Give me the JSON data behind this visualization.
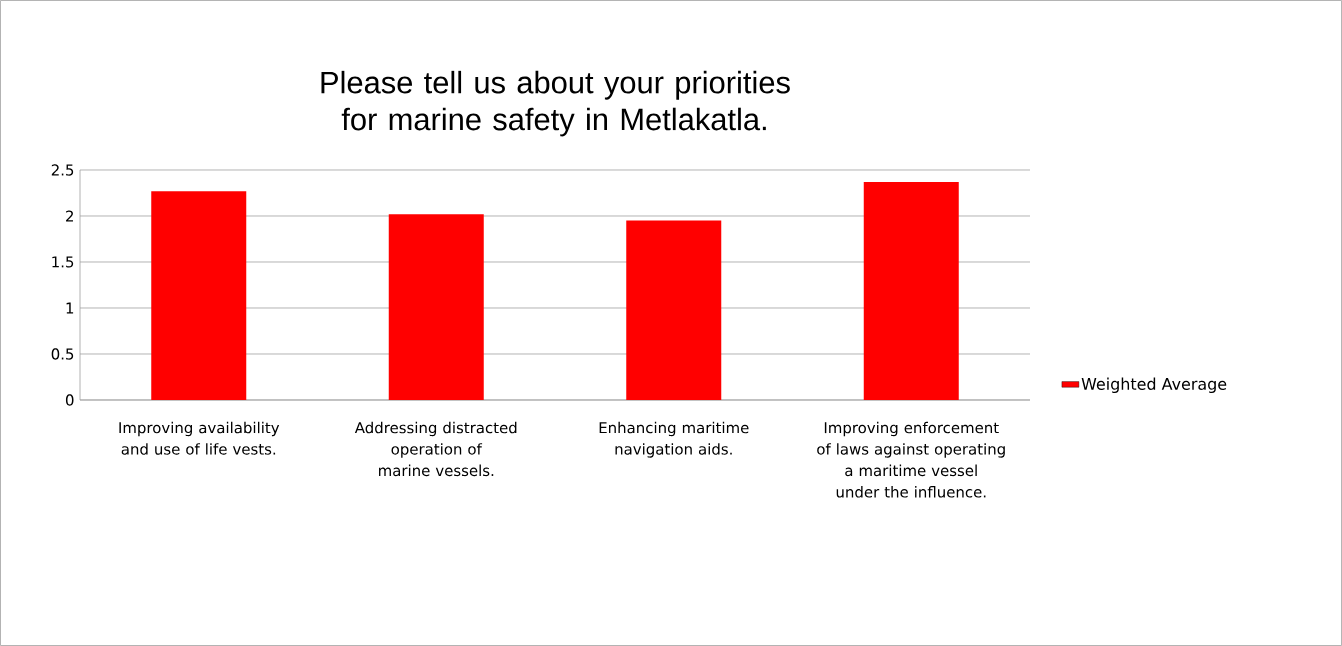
{
  "chart_data": {
    "type": "bar",
    "title": "Please tell us about your priorities for marine safety in Metlakatla.",
    "categories": [
      "Improving availability and use of life vests.",
      "Addressing distracted operation of marine vessels.",
      "Enhancing maritime navigation aids.",
      "Improving enforcement of laws against operating a maritime vessel under the influence."
    ],
    "series": [
      {
        "name": "Weighted Average",
        "color": "#ff0000",
        "values": [
          2.27,
          2.02,
          1.95,
          2.37
        ]
      }
    ],
    "ylim": [
      0,
      2.5
    ],
    "yticks": [
      0,
      0.5,
      1,
      1.5,
      2,
      2.5
    ],
    "grid": "y",
    "legend": "right"
  }
}
